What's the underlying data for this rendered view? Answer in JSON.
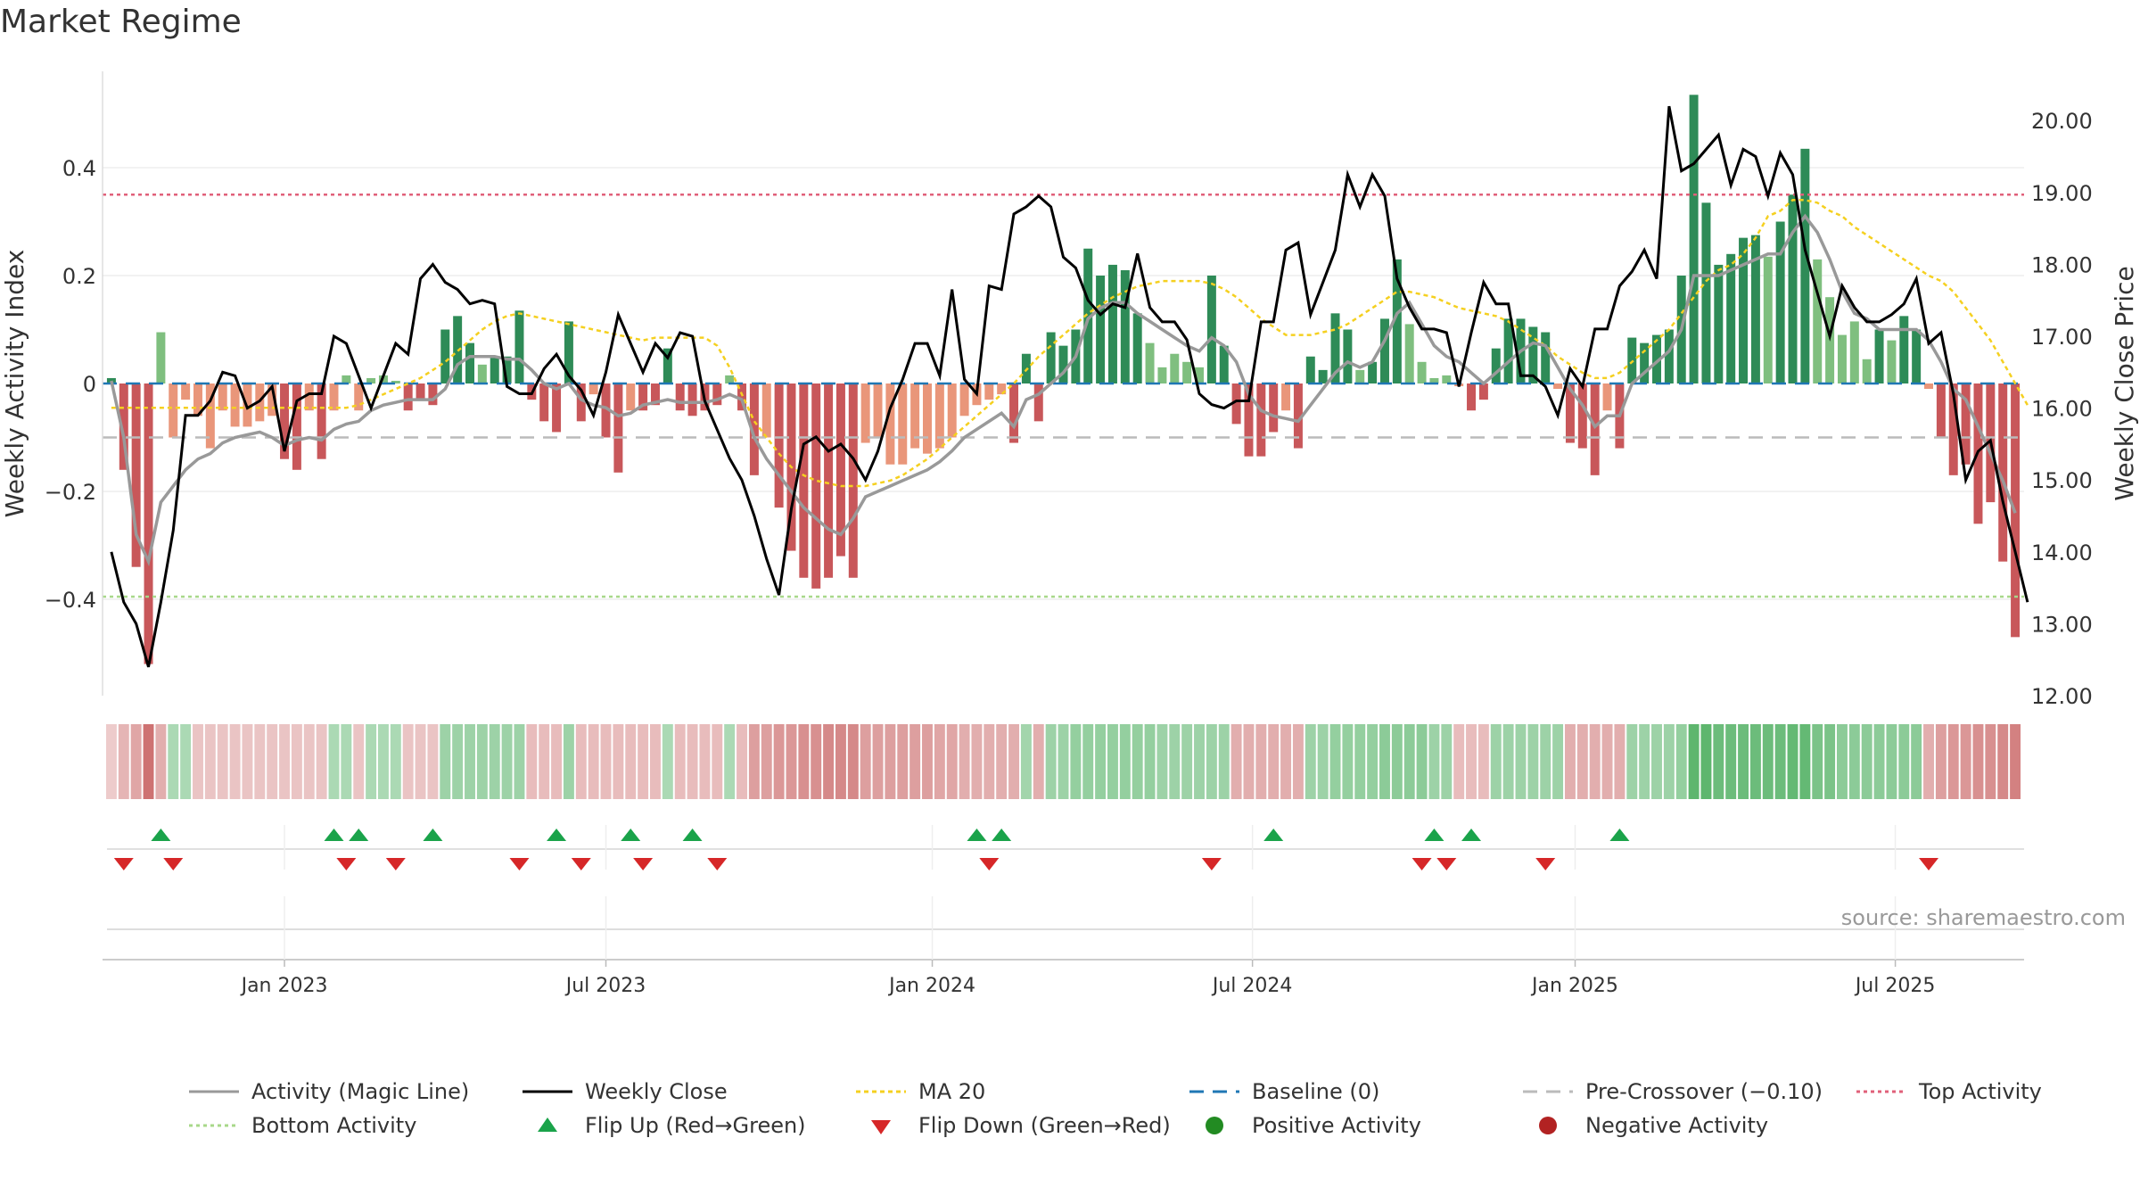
{
  "title": "Market Regime",
  "source": "source: sharemaestro.com",
  "colors": {
    "green_dark": "#2e8b57",
    "green_light": "#7fbf7f",
    "red_dark": "#c8575a",
    "red_light": "#e9967a",
    "activity_line": "#999999",
    "close_line": "#000000",
    "ma_line": "#f5d020",
    "baseline": "#1f77b4",
    "precross": "#bbbbbb",
    "top": "#e0607a",
    "bottom": "#a8d88a",
    "flip_up": "#1aa34a",
    "flip_down": "#d62728"
  },
  "chart_data": {
    "type": "bar",
    "ylabel": "Weekly Activity Index",
    "y2label": "Weekly Close Price",
    "ylim": [
      -0.58,
      0.58
    ],
    "y2lim": [
      12.0,
      20.8
    ],
    "yticks": [
      "0.4",
      "0.2",
      "0",
      "−0.2",
      "−0.4"
    ],
    "y2ticks": [
      "20.00",
      "19.00",
      "18.00",
      "17.00",
      "16.00",
      "15.00",
      "14.00",
      "13.00",
      "12.00"
    ],
    "x_ticks": [
      "Jan 2023",
      "Jul 2023",
      "Jan 2024",
      "Jul 2024",
      "Jan 2025",
      "Jul 2025"
    ],
    "x_tick_weeks": [
      14,
      40,
      66.4,
      92.3,
      118.4,
      144.3
    ],
    "levels": {
      "top": 0.35,
      "bottom": -0.395,
      "pre_crossover": -0.1,
      "baseline": 0
    },
    "activity": [
      0.01,
      -0.16,
      -0.34,
      -0.52,
      0.095,
      -0.1,
      -0.03,
      -0.06,
      -0.12,
      -0.05,
      -0.08,
      -0.08,
      -0.07,
      -0.06,
      -0.14,
      -0.16,
      -0.05,
      -0.14,
      -0.05,
      0.015,
      -0.05,
      0.01,
      0.015,
      0.005,
      -0.05,
      -0.03,
      -0.04,
      0.1,
      0.125,
      0.075,
      0.035,
      0.05,
      0.05,
      0.135,
      -0.03,
      -0.07,
      -0.09,
      0.115,
      -0.07,
      -0.02,
      -0.1,
      -0.165,
      -0.05,
      -0.05,
      -0.04,
      0.065,
      -0.05,
      -0.06,
      -0.05,
      -0.04,
      0.015,
      -0.05,
      -0.17,
      -0.1,
      -0.23,
      -0.31,
      -0.36,
      -0.38,
      -0.36,
      -0.32,
      -0.36,
      -0.11,
      -0.1,
      -0.15,
      -0.15,
      -0.12,
      -0.13,
      -0.12,
      -0.1,
      -0.06,
      -0.04,
      -0.03,
      -0.02,
      -0.11,
      0.055,
      -0.07,
      0.095,
      0.07,
      0.1,
      0.25,
      0.2,
      0.22,
      0.21,
      0.13,
      0.075,
      0.03,
      0.055,
      0.04,
      0.03,
      0.2,
      0.07,
      -0.075,
      -0.135,
      -0.135,
      -0.09,
      -0.05,
      -0.12,
      0.05,
      0.025,
      0.13,
      0.1,
      0.025,
      0.04,
      0.12,
      0.23,
      0.11,
      0.04,
      0.01,
      0.015,
      -0.005,
      -0.05,
      -0.03,
      0.065,
      0.12,
      0.12,
      0.105,
      0.095,
      -0.01,
      -0.11,
      -0.12,
      -0.17,
      -0.05,
      -0.12,
      0.085,
      0.075,
      0.09,
      0.1,
      0.2,
      0.535,
      0.335,
      0.22,
      0.24,
      0.27,
      0.275,
      0.235,
      0.3,
      0.35,
      0.435,
      0.23,
      0.16,
      0.09,
      0.115,
      0.045,
      0.1,
      0.08,
      0.125,
      0.1,
      -0.01,
      -0.1,
      -0.17,
      -0.15,
      -0.26,
      -0.22,
      -0.33,
      -0.47
    ],
    "activity_line": [
      0.005,
      -0.1,
      -0.28,
      -0.33,
      -0.22,
      -0.19,
      -0.16,
      -0.14,
      -0.13,
      -0.11,
      -0.1,
      -0.095,
      -0.09,
      -0.1,
      -0.115,
      -0.105,
      -0.1,
      -0.105,
      -0.085,
      -0.075,
      -0.07,
      -0.05,
      -0.04,
      -0.035,
      -0.03,
      -0.03,
      -0.03,
      -0.01,
      0.035,
      0.05,
      0.05,
      0.05,
      0.045,
      0.045,
      0.025,
      0.0,
      -0.01,
      0.0,
      -0.03,
      -0.04,
      -0.045,
      -0.06,
      -0.055,
      -0.04,
      -0.035,
      -0.03,
      -0.035,
      -0.035,
      -0.035,
      -0.03,
      -0.02,
      -0.03,
      -0.1,
      -0.14,
      -0.17,
      -0.2,
      -0.23,
      -0.25,
      -0.27,
      -0.28,
      -0.25,
      -0.21,
      -0.2,
      -0.19,
      -0.18,
      -0.17,
      -0.16,
      -0.145,
      -0.125,
      -0.1,
      -0.085,
      -0.07,
      -0.055,
      -0.08,
      -0.03,
      -0.02,
      0.0,
      0.02,
      0.05,
      0.12,
      0.14,
      0.15,
      0.15,
      0.13,
      0.115,
      0.1,
      0.085,
      0.07,
      0.06,
      0.085,
      0.07,
      0.04,
      -0.02,
      -0.05,
      -0.06,
      -0.065,
      -0.07,
      -0.04,
      -0.01,
      0.02,
      0.04,
      0.03,
      0.04,
      0.08,
      0.13,
      0.15,
      0.11,
      0.07,
      0.05,
      0.04,
      0.02,
      0.0,
      0.02,
      0.04,
      0.06,
      0.075,
      0.07,
      0.03,
      -0.01,
      -0.04,
      -0.08,
      -0.06,
      -0.06,
      0.0,
      0.02,
      0.04,
      0.06,
      0.1,
      0.2,
      0.2,
      0.2,
      0.21,
      0.22,
      0.23,
      0.24,
      0.24,
      0.28,
      0.31,
      0.28,
      0.23,
      0.17,
      0.13,
      0.12,
      0.1,
      0.1,
      0.1,
      0.1,
      0.08,
      0.04,
      -0.01,
      -0.03,
      -0.08,
      -0.13,
      -0.18,
      -0.24
    ],
    "weekly_close": [
      14.0,
      13.3,
      13.0,
      12.4,
      13.3,
      14.3,
      15.9,
      15.9,
      16.1,
      16.5,
      16.45,
      16.0,
      16.1,
      16.3,
      15.4,
      16.1,
      16.2,
      16.2,
      17.0,
      16.9,
      16.45,
      16.0,
      16.45,
      16.9,
      16.75,
      17.8,
      18.0,
      17.75,
      17.65,
      17.45,
      17.5,
      17.45,
      16.3,
      16.2,
      16.2,
      16.55,
      16.75,
      16.45,
      16.25,
      15.9,
      16.5,
      17.3,
      16.9,
      16.5,
      16.9,
      16.7,
      17.05,
      17.0,
      16.1,
      15.7,
      15.3,
      15.0,
      14.5,
      13.9,
      13.4,
      14.6,
      15.5,
      15.6,
      15.4,
      15.5,
      15.3,
      15.0,
      15.4,
      16.0,
      16.4,
      16.9,
      16.9,
      16.45,
      17.65,
      16.4,
      16.2,
      17.7,
      17.65,
      18.7,
      18.8,
      18.95,
      18.8,
      18.1,
      17.95,
      17.5,
      17.3,
      17.45,
      17.4,
      18.15,
      17.4,
      17.2,
      17.2,
      16.95,
      16.2,
      16.05,
      16.0,
      16.1,
      16.1,
      17.2,
      17.2,
      18.2,
      18.3,
      17.3,
      17.75,
      18.2,
      19.25,
      18.8,
      19.25,
      18.95,
      17.8,
      17.4,
      17.1,
      17.1,
      17.05,
      16.3,
      17.05,
      17.75,
      17.45,
      17.45,
      16.45,
      16.45,
      16.3,
      15.9,
      16.55,
      16.3,
      17.1,
      17.1,
      17.7,
      17.9,
      18.2,
      17.8,
      20.2,
      19.3,
      19.4,
      19.6,
      19.8,
      19.1,
      19.6,
      19.5,
      18.95,
      19.55,
      19.25,
      18.2,
      17.6,
      17.0,
      17.7,
      17.4,
      17.2,
      17.2,
      17.3,
      17.45,
      17.8,
      16.9,
      17.05,
      16.2,
      15.0,
      15.4,
      15.55,
      14.7,
      14.0,
      13.3
    ],
    "ma20": [
      -0.045,
      -0.045,
      -0.045,
      -0.045,
      -0.045,
      -0.045,
      -0.045,
      -0.045,
      -0.045,
      -0.045,
      -0.045,
      -0.045,
      -0.045,
      -0.045,
      -0.045,
      -0.045,
      -0.045,
      -0.045,
      -0.045,
      -0.045,
      -0.04,
      -0.03,
      -0.02,
      -0.01,
      0.0,
      0.01,
      0.025,
      0.04,
      0.06,
      0.08,
      0.1,
      0.115,
      0.125,
      0.13,
      0.125,
      0.12,
      0.115,
      0.11,
      0.105,
      0.1,
      0.095,
      0.09,
      0.085,
      0.08,
      0.085,
      0.085,
      0.085,
      0.085,
      0.085,
      0.07,
      0.03,
      -0.02,
      -0.07,
      -0.1,
      -0.13,
      -0.155,
      -0.17,
      -0.18,
      -0.185,
      -0.19,
      -0.19,
      -0.19,
      -0.185,
      -0.18,
      -0.17,
      -0.155,
      -0.14,
      -0.12,
      -0.1,
      -0.08,
      -0.06,
      -0.04,
      -0.02,
      0.0,
      0.025,
      0.05,
      0.07,
      0.09,
      0.11,
      0.13,
      0.145,
      0.16,
      0.17,
      0.18,
      0.185,
      0.19,
      0.19,
      0.19,
      0.19,
      0.185,
      0.175,
      0.16,
      0.14,
      0.12,
      0.105,
      0.09,
      0.09,
      0.09,
      0.095,
      0.1,
      0.11,
      0.125,
      0.14,
      0.155,
      0.17,
      0.17,
      0.165,
      0.16,
      0.15,
      0.14,
      0.135,
      0.13,
      0.125,
      0.115,
      0.1,
      0.085,
      0.07,
      0.05,
      0.035,
      0.02,
      0.01,
      0.01,
      0.02,
      0.04,
      0.06,
      0.08,
      0.1,
      0.13,
      0.16,
      0.19,
      0.21,
      0.22,
      0.24,
      0.27,
      0.31,
      0.32,
      0.34,
      0.34,
      0.335,
      0.32,
      0.31,
      0.29,
      0.275,
      0.26,
      0.245,
      0.23,
      0.215,
      0.2,
      0.19,
      0.17,
      0.14,
      0.11,
      0.08,
      0.04,
      0.0,
      -0.04
    ],
    "regime_shade": [
      -0.1,
      -0.25,
      -0.35,
      -0.7,
      -0.3,
      0.2,
      0.2,
      -0.15,
      -0.15,
      -0.15,
      -0.15,
      -0.15,
      -0.15,
      -0.15,
      -0.15,
      -0.15,
      -0.15,
      -0.15,
      0.2,
      0.2,
      -0.15,
      0.2,
      0.2,
      0.2,
      -0.15,
      -0.15,
      -0.15,
      0.3,
      0.3,
      0.3,
      0.3,
      0.3,
      0.3,
      0.3,
      -0.2,
      -0.2,
      -0.2,
      0.3,
      -0.2,
      -0.2,
      -0.2,
      -0.2,
      -0.2,
      -0.2,
      -0.2,
      0.2,
      -0.2,
      -0.2,
      -0.2,
      -0.2,
      0.2,
      -0.2,
      -0.4,
      -0.4,
      -0.45,
      -0.45,
      -0.5,
      -0.5,
      -0.55,
      -0.55,
      -0.55,
      -0.4,
      -0.4,
      -0.4,
      -0.4,
      -0.4,
      -0.4,
      -0.35,
      -0.35,
      -0.3,
      -0.3,
      -0.3,
      -0.3,
      -0.3,
      0.25,
      -0.3,
      0.3,
      0.3,
      0.35,
      0.35,
      0.35,
      0.35,
      0.35,
      0.35,
      0.35,
      0.3,
      0.3,
      0.3,
      0.3,
      0.3,
      0.3,
      -0.3,
      -0.3,
      -0.3,
      -0.3,
      -0.3,
      -0.3,
      0.3,
      0.3,
      0.35,
      0.35,
      0.35,
      0.35,
      0.4,
      0.4,
      0.4,
      0.4,
      0.3,
      0.3,
      -0.2,
      -0.2,
      -0.2,
      0.3,
      0.3,
      0.3,
      0.3,
      0.3,
      0.3,
      -0.3,
      -0.3,
      -0.3,
      -0.3,
      -0.3,
      0.3,
      0.3,
      0.3,
      0.3,
      0.35,
      0.7,
      0.7,
      0.6,
      0.6,
      0.6,
      0.6,
      0.6,
      0.6,
      0.65,
      0.65,
      0.5,
      0.5,
      0.4,
      0.4,
      0.4,
      0.4,
      0.4,
      0.4,
      0.4,
      -0.3,
      -0.4,
      -0.45,
      -0.45,
      -0.5,
      -0.5,
      -0.55,
      -0.6
    ],
    "flip_up_weeks": [
      4,
      18,
      20,
      26,
      36,
      42,
      47,
      70,
      72,
      94,
      107,
      110,
      122
    ],
    "flip_down_weeks": [
      1,
      5,
      19,
      23,
      33,
      38,
      43,
      49,
      71,
      89,
      106,
      108,
      116,
      147
    ],
    "legend": {
      "activity": "Activity (Magic Line)",
      "close": "Weekly Close",
      "ma": "MA 20",
      "baseline": "Baseline (0)",
      "precross": "Pre-Crossover (−0.10)",
      "top": "Top Activity",
      "bottom": "Bottom Activity",
      "flip_up": "Flip Up (Red→Green)",
      "flip_down": "Flip Down (Green→Red)",
      "positive": "Positive Activity",
      "negative": "Negative Activity"
    }
  }
}
